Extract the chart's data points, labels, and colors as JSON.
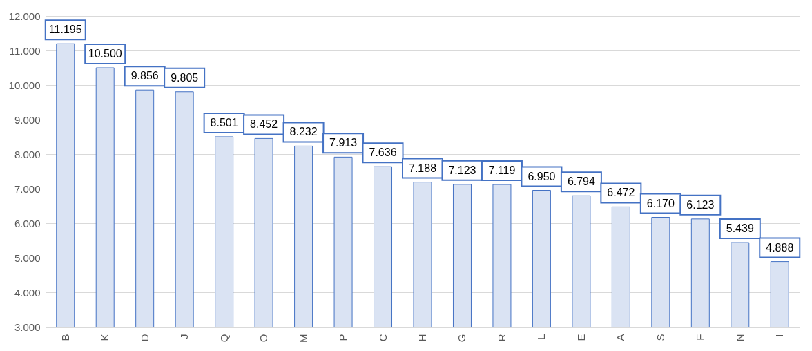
{
  "chart_data": {
    "type": "bar",
    "categories": [
      "B",
      "K",
      "D",
      "J",
      "Q",
      "O",
      "M",
      "P",
      "C",
      "H",
      "G",
      "R",
      "L",
      "E",
      "A",
      "S",
      "F",
      "N",
      "I"
    ],
    "values": [
      11195,
      10500,
      9856,
      9805,
      8501,
      8452,
      8232,
      7913,
      7636,
      7188,
      7123,
      7119,
      6950,
      6794,
      6472,
      6170,
      6123,
      5439,
      4888
    ],
    "value_labels": [
      "11.195",
      "10.500",
      "9.856",
      "9.805",
      "8.501",
      "8.452",
      "8.232",
      "7.913",
      "7.636",
      "7.188",
      "7.123",
      "7.119",
      "6.950",
      "6.794",
      "6.472",
      "6.170",
      "6.123",
      "5.439",
      "4.888"
    ],
    "color": "#dae3f3",
    "ylim": [
      3000,
      12000
    ],
    "yticks": [
      {
        "value": 3000,
        "label": "3.000"
      },
      {
        "value": 4000,
        "label": "4.000"
      },
      {
        "value": 5000,
        "label": "5.000"
      },
      {
        "value": 6000,
        "label": "6.000"
      },
      {
        "value": 7000,
        "label": "7.000"
      },
      {
        "value": 8000,
        "label": "8.000"
      },
      {
        "value": 9000,
        "label": "9.000"
      },
      {
        "value": 10000,
        "label": "10.000"
      },
      {
        "value": 11000,
        "label": "11.000"
      },
      {
        "value": 12000,
        "label": "12.000"
      }
    ],
    "grid": true
  }
}
